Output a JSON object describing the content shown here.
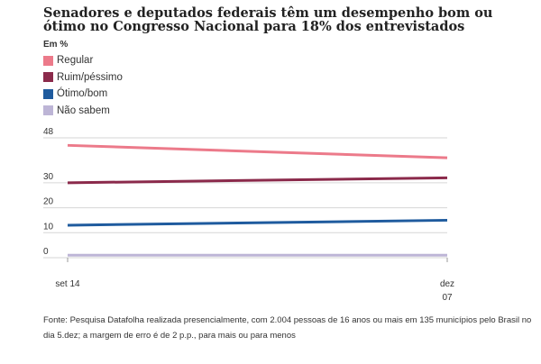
{
  "header": {
    "title": "Senadores e deputados federais têm um desempenho bom ou ótimo no Congresso Nacional para 18% dos entrevistados",
    "unit": "Em %"
  },
  "legend": [
    {
      "label": "Regular",
      "color": "#ec7a8a"
    },
    {
      "label": "Ruim/péssimo",
      "color": "#8b2a4b"
    },
    {
      "label": "Ótimo/bom",
      "color": "#1f5b9e"
    },
    {
      "label": "Não sabem",
      "color": "#bdb5d6"
    }
  ],
  "chart_data": {
    "type": "line",
    "x": [
      "set 14",
      "dez 07"
    ],
    "x_tick_labels": [
      [
        "set 14"
      ],
      [
        "dez",
        "07"
      ]
    ],
    "y_ticks": [
      0,
      10,
      20,
      30,
      48
    ],
    "ylim": [
      0,
      48
    ],
    "grid": true,
    "series": [
      {
        "name": "Regular",
        "color": "#ec7a8a",
        "values": [
          45,
          40
        ]
      },
      {
        "name": "Ruim/péssimo",
        "color": "#8b2a4b",
        "values": [
          30,
          32
        ]
      },
      {
        "name": "Ótimo/bom",
        "color": "#1f5b9e",
        "values": [
          13,
          15
        ]
      },
      {
        "name": "Não sabem",
        "color": "#bdb5d6",
        "values": [
          1,
          1
        ]
      }
    ]
  },
  "footer": {
    "source": "Fonte: Pesquisa Datafolha realizada presencialmente, com 2.004 pessoas de 16 anos ou mais em 135 municípios pelo Brasil no dia 5.dez; a margem de erro é de 2 p.p., para mais ou para menos"
  }
}
